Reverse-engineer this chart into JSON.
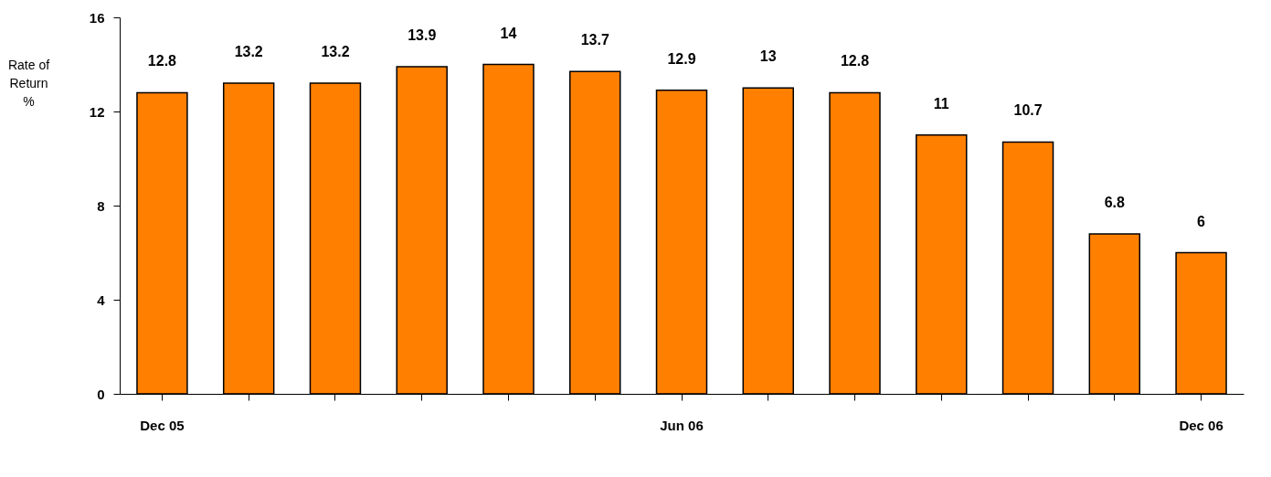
{
  "chart_data": {
    "type": "bar",
    "ylabel": "Rate of\nReturn\n%",
    "categories": [
      "Dec 05",
      null,
      null,
      null,
      null,
      null,
      "Jun 06",
      null,
      null,
      null,
      null,
      null,
      "Dec 06"
    ],
    "values": [
      12.8,
      13.2,
      13.2,
      13.9,
      14,
      13.7,
      12.9,
      13,
      12.8,
      11,
      10.7,
      6.8,
      6
    ],
    "color": "#ff8000",
    "ylim": [
      0,
      16
    ],
    "yticks": [
      0,
      4,
      8,
      12,
      16
    ],
    "grid": false,
    "data_labels": true
  }
}
